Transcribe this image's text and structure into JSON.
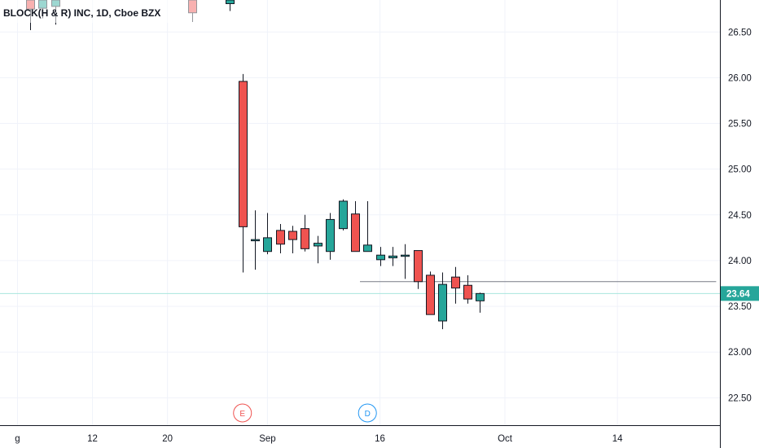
{
  "chart_data": {
    "type": "candlestick",
    "title": "BLOCK(H & R) INC, 1D, Cboe BZX",
    "ylim": [
      22.2,
      26.85
    ],
    "y_ticks": [
      "22.50",
      "23.00",
      "23.50",
      "24.00",
      "24.50",
      "25.00",
      "25.50",
      "26.00",
      "26.50"
    ],
    "x_ticks": [
      {
        "label": "g",
        "x": 0
      },
      {
        "label": "12",
        "x": 6
      },
      {
        "label": "20",
        "x": 12
      },
      {
        "label": "Sep",
        "x": 20
      },
      {
        "label": "16",
        "x": 29
      },
      {
        "label": "Oct",
        "x": 39
      },
      {
        "label": "14",
        "x": 48
      }
    ],
    "x_range": [
      -1.4,
      56.2
    ],
    "candles": [
      {
        "x": 1,
        "open": 26.85,
        "close": 26.75,
        "high": 26.9,
        "low": 26.52
      },
      {
        "x": 2,
        "open": 26.76,
        "close": 26.85,
        "high": 26.9,
        "low": 26.65
      },
      {
        "x": 3,
        "open": 26.78,
        "close": 26.85,
        "high": 26.9,
        "low": 26.58
      },
      {
        "x": 14,
        "open": 26.85,
        "close": 26.71,
        "high": 26.9,
        "low": 26.61
      },
      {
        "x": 17,
        "open": 26.81,
        "close": 26.85,
        "high": 26.9,
        "low": 26.73
      },
      {
        "x": 18,
        "open": 25.96,
        "close": 24.37,
        "high": 26.04,
        "low": 23.87
      },
      {
        "x": 19,
        "open": 24.22,
        "close": 24.23,
        "high": 24.55,
        "low": 23.9
      },
      {
        "x": 20,
        "open": 24.1,
        "close": 24.25,
        "high": 24.52,
        "low": 24.07
      },
      {
        "x": 21,
        "open": 24.33,
        "close": 24.18,
        "high": 24.4,
        "low": 24.08
      },
      {
        "x": 22,
        "open": 24.32,
        "close": 24.23,
        "high": 24.38,
        "low": 24.08
      },
      {
        "x": 23,
        "open": 24.35,
        "close": 24.13,
        "high": 24.5,
        "low": 24.1
      },
      {
        "x": 24,
        "open": 24.16,
        "close": 24.19,
        "high": 24.27,
        "low": 23.97
      },
      {
        "x": 25,
        "open": 24.1,
        "close": 24.45,
        "high": 24.52,
        "low": 24.01
      },
      {
        "x": 26,
        "open": 24.35,
        "close": 24.65,
        "high": 24.67,
        "low": 24.33
      },
      {
        "x": 27,
        "open": 24.51,
        "close": 24.1,
        "high": 24.65,
        "low": 24.1
      },
      {
        "x": 28,
        "open": 24.1,
        "close": 24.17,
        "high": 24.65,
        "low": 24.1
      },
      {
        "x": 29,
        "open": 24.01,
        "close": 24.06,
        "high": 24.15,
        "low": 23.94
      },
      {
        "x": 30,
        "open": 24.03,
        "close": 24.05,
        "high": 24.15,
        "low": 23.94
      },
      {
        "x": 31,
        "open": 24.05,
        "close": 24.06,
        "high": 24.18,
        "low": 23.8
      },
      {
        "x": 32,
        "open": 24.11,
        "close": 23.77,
        "high": 24.11,
        "low": 23.69
      },
      {
        "x": 33,
        "open": 23.84,
        "close": 23.41,
        "high": 23.88,
        "low": 23.41
      },
      {
        "x": 34,
        "open": 23.34,
        "close": 23.74,
        "high": 23.87,
        "low": 23.25
      },
      {
        "x": 35,
        "open": 23.82,
        "close": 23.7,
        "high": 23.93,
        "low": 23.53
      },
      {
        "x": 36,
        "open": 23.73,
        "close": 23.58,
        "high": 23.84,
        "low": 23.53
      },
      {
        "x": 37,
        "open": 23.56,
        "close": 23.64,
        "high": 23.65,
        "low": 23.43
      }
    ],
    "last_price": 23.64,
    "last_price_label": "23.64",
    "horizontal_line": {
      "price": 23.77,
      "from_x": 27.4,
      "to_x": 55.9
    },
    "events": [
      {
        "label": "E",
        "x": 18,
        "color": "#ef5350"
      },
      {
        "label": "D",
        "x": 28,
        "color": "#2196f3"
      }
    ],
    "colors": {
      "up": "#26a69a",
      "down": "#ef5350",
      "wick": "#131722",
      "grid": "#f0f3fa",
      "axis_line": "#131722",
      "last_price_line": "#a8e6dd",
      "last_price_bg": "#26a69a",
      "h_line": "#787b86"
    }
  }
}
